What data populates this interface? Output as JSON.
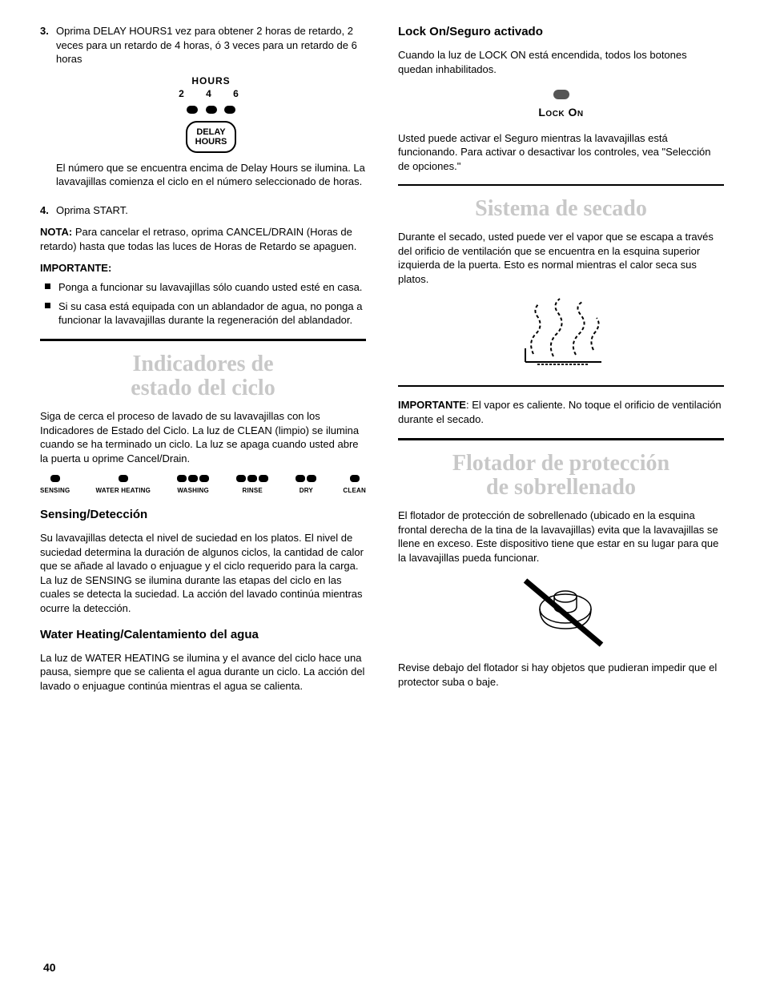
{
  "left": {
    "item3_num": "3.",
    "item3_text": "Oprima DELAY HOURS1 vez para obtener 2 horas de retardo, 2 veces para un retardo de 4 horas, ó 3 veces para un retardo de 6 horas",
    "hours_label": "HOURS",
    "hours_nums": "2 4 6",
    "delay_btn_l1": "DELAY",
    "delay_btn_l2": "HOURS",
    "after_delay": "El número que se encuentra encima de Delay Hours se ilumina. La lavavajillas comienza el ciclo en el número seleccionado de horas.",
    "item4_num": "4.",
    "item4_text": "Oprima START.",
    "nota_label": "NOTA:",
    "nota_text": " Para cancelar el retraso, oprima CANCEL/DRAIN (Horas de retardo) hasta que todas las luces de Horas de Retardo se apaguen.",
    "importante_label": "IMPORTANTE:",
    "b1": "Ponga a funcionar su lavavajillas sólo cuando usted esté en casa.",
    "b2": "Si su casa está equipada con un ablandador de agua, no ponga a funcionar la lavavajillas durante la regeneración del ablandador.",
    "title_indicadores_l1": "Indicadores de",
    "title_indicadores_l2": "estado del ciclo",
    "indicadores_para": "Siga de cerca el proceso de lavado de su lavavajillas con los Indicadores de Estado del Ciclo. La luz de CLEAN (limpio) se ilumina cuando se ha terminado un ciclo. La luz se apaga cuando usted abre la puerta u oprime Cancel/Drain.",
    "ind": [
      "SENSING",
      "WATER HEATING",
      "WASHING",
      "RINSE",
      "DRY",
      "CLEAN"
    ],
    "ind_leds": [
      1,
      1,
      3,
      3,
      2,
      1
    ],
    "sensing_title": "Sensing/Detección",
    "sensing_text": "Su lavavajillas detecta el nivel de suciedad en los platos. El nivel de suciedad determina la duración de algunos ciclos, la cantidad de calor que se añade al lavado o enjuague y el ciclo requerido para la carga. La luz de SENSING se ilumina durante las etapas del ciclo en las cuales se detecta la suciedad. La acción del lavado continúa mientras ocurre la detección.",
    "water_title": "Water Heating/Calentamiento del agua",
    "water_text": "La luz de WATER HEATING se ilumina y el avance del ciclo hace una pausa, siempre que se calienta el agua durante un ciclo. La acción del lavado o enjuague continúa mientras el agua se calienta."
  },
  "right": {
    "lock_title": "Lock On/Seguro activado",
    "lock_p1": "Cuando la luz de LOCK ON está encendida, todos los botones quedan inhabilitados.",
    "lockon_label": "Lock On",
    "lock_p2": "Usted puede activar el Seguro mientras la lavavajillas está funcionando. Para activar o desactivar los controles, vea \"Selección de opciones.\"",
    "secado_title": "Sistema de secado",
    "secado_p1": "Durante el secado, usted puede ver el vapor que se escapa a través del orificio de ventilación que se encuentra en la esquina superior izquierda de la puerta. Esto es normal mientras el calor seca sus platos.",
    "secado_imp_label": "IMPORTANTE",
    "secado_imp_text": ": El vapor es caliente. No toque el orificio de ventilación durante el secado.",
    "float_title_l1": "Flotador de protección",
    "float_title_l2": "de sobrellenado",
    "float_p1": "El flotador de protección de sobrellenado (ubicado en la esquina frontal derecha de la tina de la lavavajillas) evita que la lavavajillas se llene en exceso. Este dispositivo tiene que estar en su lugar para que la lavavajillas pueda funcionar.",
    "float_p2": "Revise debajo del flotador si hay objetos que pudieran impedir que el protector suba o baje."
  },
  "page_number": "40"
}
